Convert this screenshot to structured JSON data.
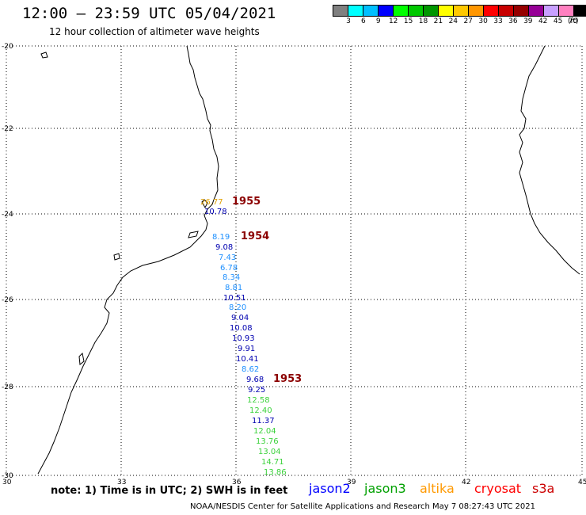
{
  "header": {
    "title": "12:00 – 23:59 UTC 05/04/2021",
    "subtitle": "12 hour collection of altimeter wave heights"
  },
  "colorbar": {
    "colors": [
      "#808080",
      "#00ffff",
      "#00bfff",
      "#0000ff",
      "#00ff00",
      "#00c800",
      "#009600",
      "#ffff00",
      "#ffc800",
      "#ff9600",
      "#ff0000",
      "#c80000",
      "#960000",
      "#960096",
      "#c8a0ff",
      "#ff80c0",
      "#000000"
    ],
    "labels": [
      "3",
      "6",
      "9",
      "12",
      "15",
      "18",
      "21",
      "24",
      "27",
      "30",
      "33",
      "36",
      "39",
      "42",
      "45",
      "70"
    ],
    "unit": "(ft)"
  },
  "axes": {
    "lat_labels": [
      "-20",
      "-22",
      "-24",
      "-26",
      "-28",
      "-30"
    ],
    "lon_labels": [
      "30",
      "33",
      "36",
      "39",
      "42",
      "45"
    ]
  },
  "passes": [
    {
      "label": "1955",
      "color": "#8b0000"
    },
    {
      "label": "1954",
      "color": "#8b0000"
    },
    {
      "label": "1953",
      "color": "#8b0000"
    }
  ],
  "readings": [
    {
      "text": "26.77",
      "color": "#e0a000"
    },
    {
      "text": "10.78",
      "color": "#0000b0"
    },
    {
      "text": "8.19",
      "color": "#1e90ff"
    },
    {
      "text": "9.08",
      "color": "#0000b0"
    },
    {
      "text": "7.43",
      "color": "#1e90ff"
    },
    {
      "text": "6.78",
      "color": "#1e90ff"
    },
    {
      "text": "8.34",
      "color": "#1e90ff"
    },
    {
      "text": "8.81",
      "color": "#1e90ff"
    },
    {
      "text": "10.51",
      "color": "#0000b0"
    },
    {
      "text": "8.20",
      "color": "#1e90ff"
    },
    {
      "text": "9.04",
      "color": "#0000b0"
    },
    {
      "text": "10.08",
      "color": "#0000b0"
    },
    {
      "text": "10.93",
      "color": "#0000b0"
    },
    {
      "text": "9.91",
      "color": "#0000b0"
    },
    {
      "text": "10.41",
      "color": "#0000b0"
    },
    {
      "text": "8.62",
      "color": "#1e90ff"
    },
    {
      "text": "9.68",
      "color": "#0000b0"
    },
    {
      "text": "9.25",
      "color": "#0000b0"
    },
    {
      "text": "12.58",
      "color": "#3cd23c"
    },
    {
      "text": "12.40",
      "color": "#3cd23c"
    },
    {
      "text": "11.37",
      "color": "#0000b0"
    },
    {
      "text": "12.04",
      "color": "#3cd23c"
    },
    {
      "text": "13.76",
      "color": "#3cd23c"
    },
    {
      "text": "13.04",
      "color": "#3cd23c"
    },
    {
      "text": "14.71",
      "color": "#3cd23c"
    },
    {
      "text": "13.86",
      "color": "#3cd23c"
    }
  ],
  "footer": {
    "note": "note:  1) Time is in UTC;  2) SWH is in feet",
    "satellites": [
      {
        "name": "jason2",
        "color": "#0000ff"
      },
      {
        "name": "jason3",
        "color": "#00a000"
      },
      {
        "name": "altika",
        "color": "#ff9900"
      },
      {
        "name": "cryosat",
        "color": "#ff0000"
      },
      {
        "name": "s3a",
        "color": "#cc0000"
      }
    ],
    "credit": "NOAA/NESDIS Center for Satellite Applications and Research     May  7 08:27:43 UTC 2021"
  }
}
